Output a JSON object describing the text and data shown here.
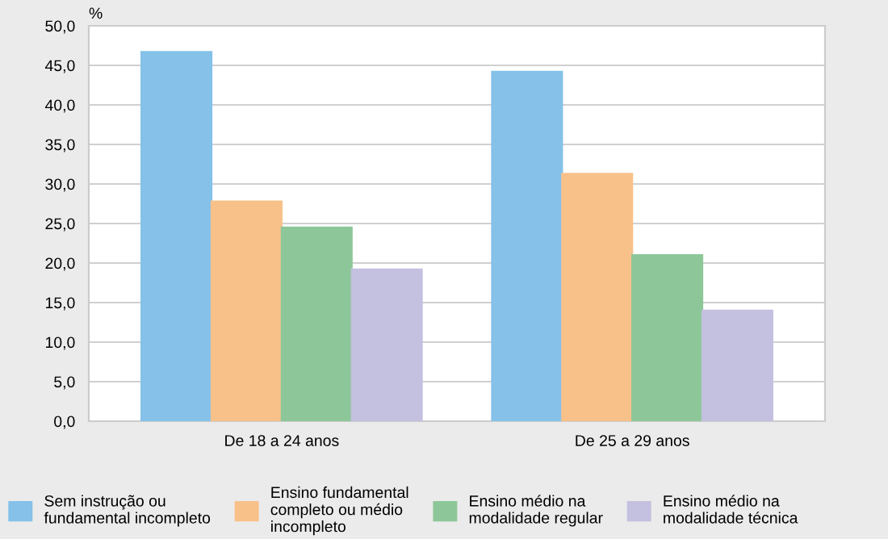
{
  "chart_data": {
    "type": "bar",
    "ylabel": "%",
    "categories": [
      "De 18 a 24 anos",
      "De 25 a 29 anos"
    ],
    "series": [
      {
        "name": "Sem instrução ou\nfundamental incompleto",
        "color": "#85c1e9",
        "values": [
          46.7,
          44.2
        ]
      },
      {
        "name": "Ensino fundamental\ncompleto ou médio\nincompleto",
        "color": "#f8c18a",
        "values": [
          27.8,
          31.3
        ]
      },
      {
        "name": "Ensino médio na\nmodalidade regular",
        "color": "#8dc799",
        "values": [
          24.5,
          21.0
        ]
      },
      {
        "name": "Ensino médio na\nmodalidade técnica",
        "color": "#c4c0e0",
        "values": [
          19.2,
          14.0
        ]
      }
    ],
    "ylim": [
      0,
      50
    ],
    "yticks": [
      {
        "value": 0,
        "label": "0,0"
      },
      {
        "value": 5,
        "label": "5,0"
      },
      {
        "value": 10,
        "label": "10,0"
      },
      {
        "value": 15,
        "label": "15,0"
      },
      {
        "value": 20,
        "label": "20,0"
      },
      {
        "value": 25,
        "label": "25,0"
      },
      {
        "value": 30,
        "label": "30,0"
      },
      {
        "value": 35,
        "label": "35,0"
      },
      {
        "value": 40,
        "label": "40,0"
      },
      {
        "value": 45,
        "label": "45,0"
      },
      {
        "value": 50,
        "label": "50,0"
      }
    ],
    "grid": "y",
    "legend": "bottom"
  }
}
